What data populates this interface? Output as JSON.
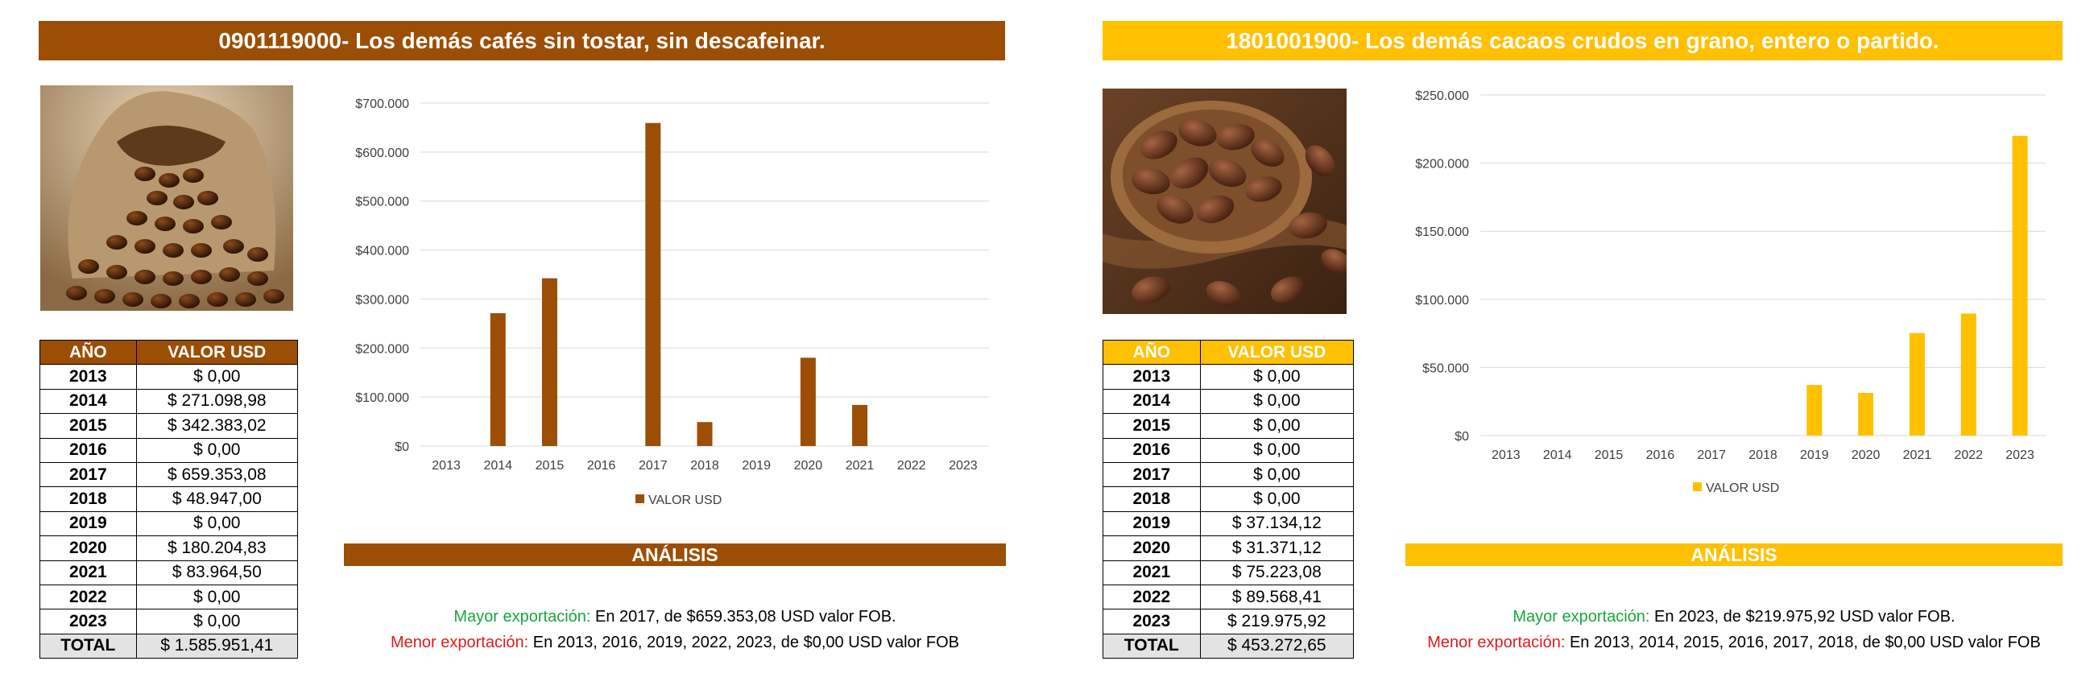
{
  "panels": [
    {
      "title": "0901119000- Los demás cafés sin tostar, sin descafeinar.",
      "accent": "#9c4e05",
      "photo_icon": "coffee-beans-sack",
      "table_header": [
        "AÑO",
        "VALOR USD"
      ],
      "rows": [
        {
          "year": "2013",
          "value": "$ 0,00"
        },
        {
          "year": "2014",
          "value": "$ 271.098,98"
        },
        {
          "year": "2015",
          "value": "$ 342.383,02"
        },
        {
          "year": "2016",
          "value": "$ 0,00"
        },
        {
          "year": "2017",
          "value": "$ 659.353,08"
        },
        {
          "year": "2018",
          "value": "$ 48.947,00"
        },
        {
          "year": "2019",
          "value": "$ 0,00"
        },
        {
          "year": "2020",
          "value": "$ 180.204,83"
        },
        {
          "year": "2021",
          "value": "$ 83.964,50"
        },
        {
          "year": "2022",
          "value": "$ 0,00"
        },
        {
          "year": "2023",
          "value": "$ 0,00"
        }
      ],
      "total_label": "TOTAL",
      "total_value": "$ 1.585.951,41",
      "analysis_title": "ANÁLISIS",
      "mayor_label": "Mayor exportación:",
      "mayor_text": " En 2017, de $659.353,08 USD valor FOB.",
      "menor_label": "Menor exportación:",
      "menor_text": " En 2013, 2016, 2019, 2022, 2023, de $0,00 USD valor FOB"
    },
    {
      "title": "1801001900- Los demás cacaos crudos en grano, entero o partido.",
      "accent": "#ffc000",
      "photo_icon": "cocoa-beans-spoon",
      "table_header": [
        "AÑO",
        "VALOR USD"
      ],
      "rows": [
        {
          "year": "2013",
          "value": "$ 0,00"
        },
        {
          "year": "2014",
          "value": "$ 0,00"
        },
        {
          "year": "2015",
          "value": "$ 0,00"
        },
        {
          "year": "2016",
          "value": "$ 0,00"
        },
        {
          "year": "2017",
          "value": "$ 0,00"
        },
        {
          "year": "2018",
          "value": "$ 0,00"
        },
        {
          "year": "2019",
          "value": "$ 37.134,12"
        },
        {
          "year": "2020",
          "value": "$ 31.371,12"
        },
        {
          "year": "2021",
          "value": "$ 75.223,08"
        },
        {
          "year": "2022",
          "value": "$ 89.568,41"
        },
        {
          "year": "2023",
          "value": "$ 219.975,92"
        }
      ],
      "total_label": "TOTAL",
      "total_value": "$ 453.272,65",
      "analysis_title": "ANÁLISIS",
      "mayor_label": "Mayor exportación:",
      "mayor_text": " En 2023, de $219.975,92 USD valor FOB.",
      "menor_label": "Menor exportación:",
      "menor_text": " En 2013, 2014, 2015, 2016, 2017, 2018, de $0,00 USD valor FOB"
    }
  ],
  "chart_data": [
    {
      "type": "bar",
      "categories": [
        "2013",
        "2014",
        "2015",
        "2016",
        "2017",
        "2018",
        "2019",
        "2020",
        "2021",
        "2022",
        "2023"
      ],
      "series": [
        {
          "name": "VALOR USD",
          "values": [
            0,
            271098.98,
            342383.02,
            0,
            659353.08,
            48947.0,
            0,
            180204.83,
            83964.5,
            0,
            0
          ],
          "color": "#9c4e05"
        }
      ],
      "yticks": [
        "$0",
        "$100.000",
        "$200.000",
        "$300.000",
        "$400.000",
        "$500.000",
        "$600.000",
        "$700.000"
      ],
      "ylim": [
        0,
        700000
      ],
      "ystep": 100000,
      "grid": true,
      "legend": "bottom"
    },
    {
      "type": "bar",
      "categories": [
        "2013",
        "2014",
        "2015",
        "2016",
        "2017",
        "2018",
        "2019",
        "2020",
        "2021",
        "2022",
        "2023"
      ],
      "series": [
        {
          "name": "VALOR USD",
          "values": [
            0,
            0,
            0,
            0,
            0,
            0,
            37134.12,
            31371.12,
            75223.08,
            89568.41,
            219975.92
          ],
          "color": "#ffc000"
        }
      ],
      "yticks": [
        "$0",
        "$50.000",
        "$100.000",
        "$150.000",
        "$200.000",
        "$250.000"
      ],
      "ylim": [
        0,
        250000
      ],
      "ystep": 50000,
      "grid": true,
      "legend": "bottom"
    }
  ]
}
